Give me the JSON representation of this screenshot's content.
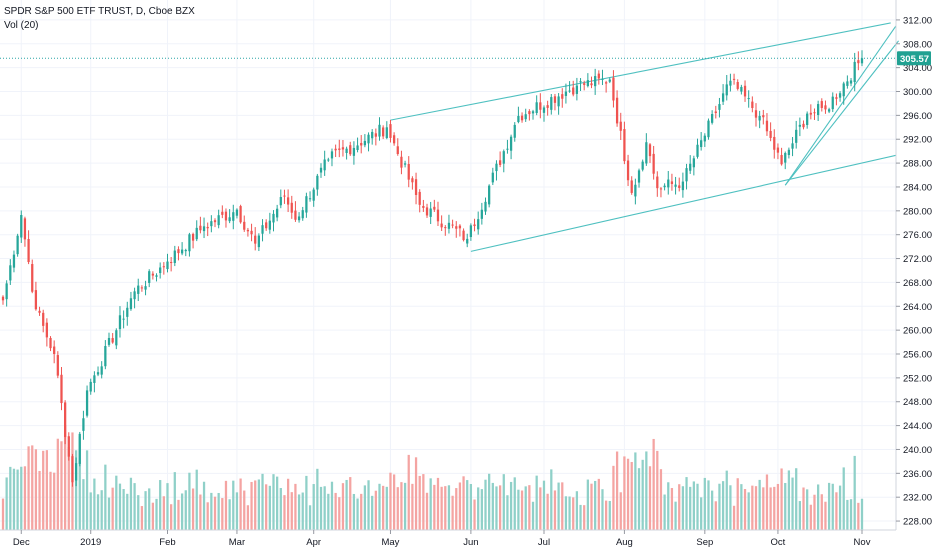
{
  "header": {
    "symbol_title": "SPDR S&P 500 ETF TRUST, D, Cboe BZX",
    "volume_label": "Vol (20)"
  },
  "colors": {
    "up": "#26a69a",
    "down": "#ef5350",
    "vol_up": "#8fd0c8",
    "vol_down": "#f4a4a2",
    "trendline": "#4ec0c0",
    "price_line": "#2aa6a6",
    "price_tag": "#21a192",
    "axis": "#d1d4dc"
  },
  "chart_data": {
    "type": "candlestick",
    "title": "SPDR S&P 500 ETF TRUST, D, Cboe BZX",
    "indicator": "Vol (20)",
    "y_ticks": [
      228,
      232,
      236,
      240,
      244,
      248,
      252,
      256,
      260,
      264,
      268,
      272,
      276,
      280,
      284,
      288,
      292,
      296,
      300,
      304,
      308,
      312
    ],
    "y_range": [
      226.5,
      314.5
    ],
    "x_ticks": [
      "Dec",
      "2019",
      "Feb",
      "Mar",
      "Apr",
      "May",
      "Jun",
      "Jul",
      "Aug",
      "Sep",
      "Oct",
      "Nov"
    ],
    "x_tick_dates": [
      "2018-12-03",
      "2019-01-02",
      "2019-02-01",
      "2019-03-01",
      "2019-04-01",
      "2019-05-01",
      "2019-06-03",
      "2019-07-01",
      "2019-08-01",
      "2019-09-03",
      "2019-10-01",
      "2019-11-01"
    ],
    "last_price": 305.57,
    "anchors": [
      [
        "2018-11-26",
        265.0
      ],
      [
        "2018-12-03",
        279.3
      ],
      [
        "2018-12-10",
        263.5
      ],
      [
        "2018-12-17",
        256.0
      ],
      [
        "2018-12-24",
        234.5
      ],
      [
        "2018-12-31",
        249.9
      ],
      [
        "2019-01-18",
        266.5
      ],
      [
        "2019-02-01",
        271.5
      ],
      [
        "2019-02-15",
        277.4
      ],
      [
        "2019-03-01",
        280.2
      ],
      [
        "2019-03-08",
        274.5
      ],
      [
        "2019-03-20",
        282.5
      ],
      [
        "2019-03-25",
        278.5
      ],
      [
        "2019-04-05",
        288.6
      ],
      [
        "2019-04-30",
        294.0
      ],
      [
        "2019-05-13",
        281.0
      ],
      [
        "2019-05-31",
        275.3
      ],
      [
        "2019-06-20",
        295.9
      ],
      [
        "2019-07-15",
        301.0
      ],
      [
        "2019-07-26",
        302.0
      ],
      [
        "2019-08-05",
        283.0
      ],
      [
        "2019-08-09",
        291.5
      ],
      [
        "2019-08-14",
        283.8
      ],
      [
        "2019-08-23",
        284.9
      ],
      [
        "2019-09-12",
        301.8
      ],
      [
        "2019-09-24",
        295.9
      ],
      [
        "2019-10-02",
        287.8
      ],
      [
        "2019-10-11",
        296.3
      ],
      [
        "2019-10-18",
        297.0
      ],
      [
        "2019-11-01",
        305.57
      ]
    ],
    "trendlines": [
      {
        "from": [
          "2019-05-01",
          295.2
        ],
        "to": [
          "2019-11-12",
          311.5
        ]
      },
      {
        "from": [
          "2019-06-03",
          273.2
        ],
        "to": [
          "2019-11-14",
          289.3
        ]
      },
      {
        "from": [
          "2019-10-03",
          284.3
        ],
        "to": [
          "2019-11-15",
          308.5
        ]
      },
      {
        "from": [
          "2019-10-03",
          284.3
        ],
        "to": [
          "2019-11-14",
          311.0
        ]
      }
    ]
  }
}
